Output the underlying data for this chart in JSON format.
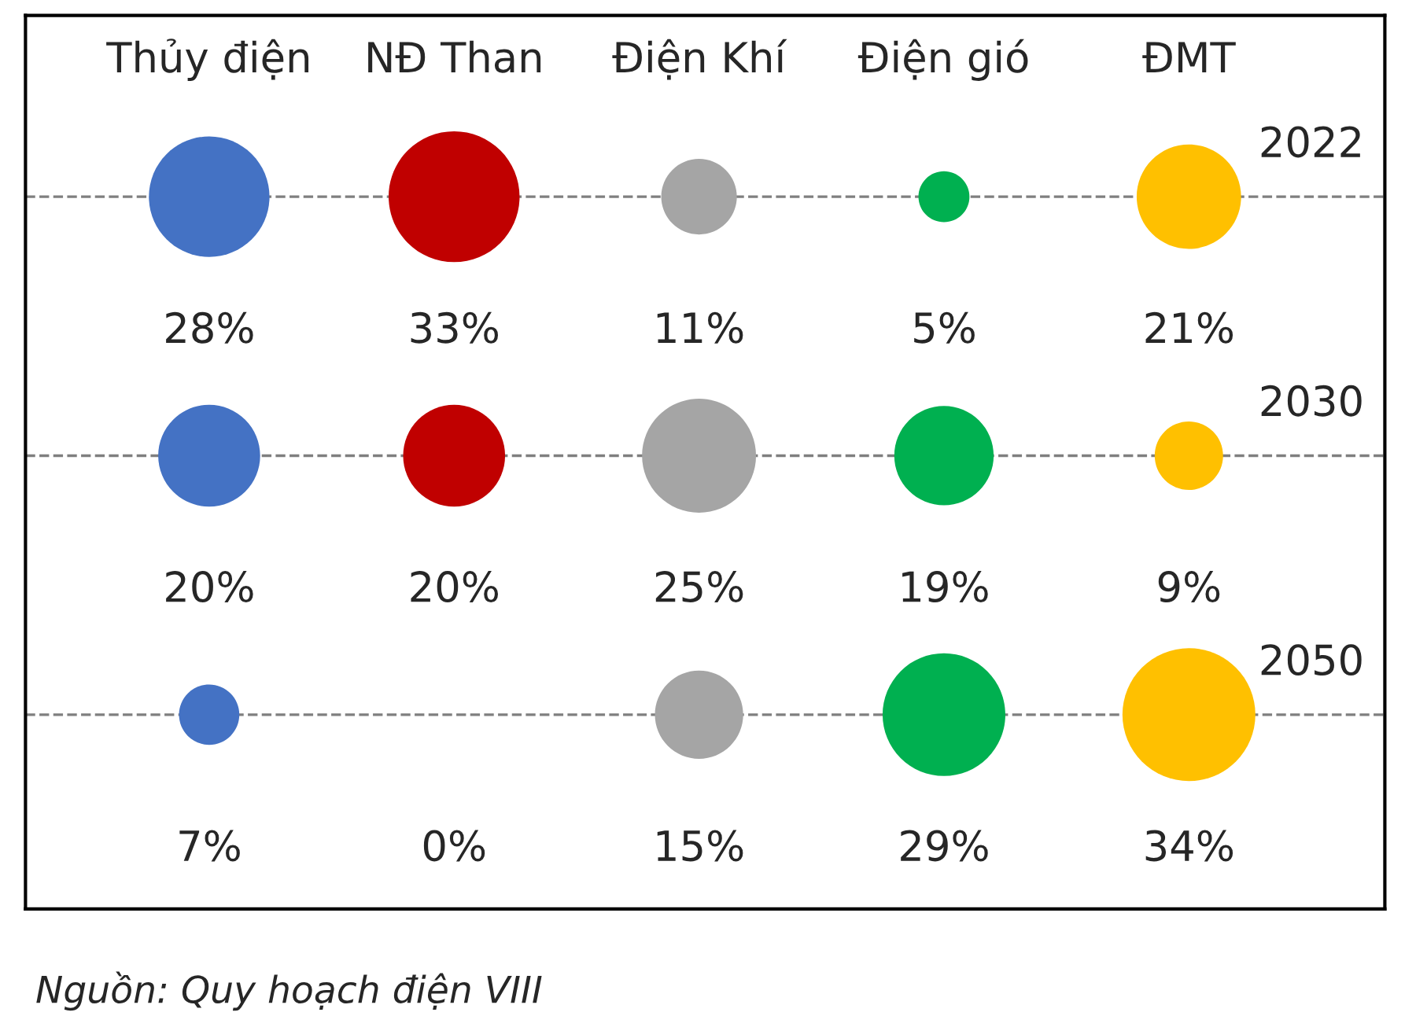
{
  "chart_data": {
    "type": "other",
    "categories": [
      "Thủy điện",
      "NĐ Than",
      "Điện Khí",
      "Điện gió",
      "ĐMT"
    ],
    "series": [
      {
        "name": "2022",
        "colors": [
          "#4472c4",
          "#c00000",
          "#a5a5a5",
          "#00b050",
          "#ffc000"
        ],
        "values": [
          28,
          33,
          11,
          5,
          21
        ],
        "value_labels": [
          "28%",
          "33%",
          "11%",
          "5%",
          "21%"
        ]
      },
      {
        "name": "2030",
        "colors": [
          "#4472c4",
          "#c00000",
          "#a5a5a5",
          "#00b050",
          "#ffc000"
        ],
        "values": [
          20,
          20,
          25,
          19,
          9
        ],
        "value_labels": [
          "20%",
          "20%",
          "25%",
          "19%",
          "9%"
        ]
      },
      {
        "name": "2050",
        "colors": [
          "#4472c4",
          "#c00000",
          "#a5a5a5",
          "#00b050",
          "#ffc000"
        ],
        "values": [
          7,
          0,
          15,
          29,
          34
        ],
        "value_labels": [
          "7%",
          "0%",
          "15%",
          "29%",
          "34%"
        ]
      }
    ],
    "annotations": [
      "Nguồn: Quy hoạch điện VIII"
    ]
  }
}
